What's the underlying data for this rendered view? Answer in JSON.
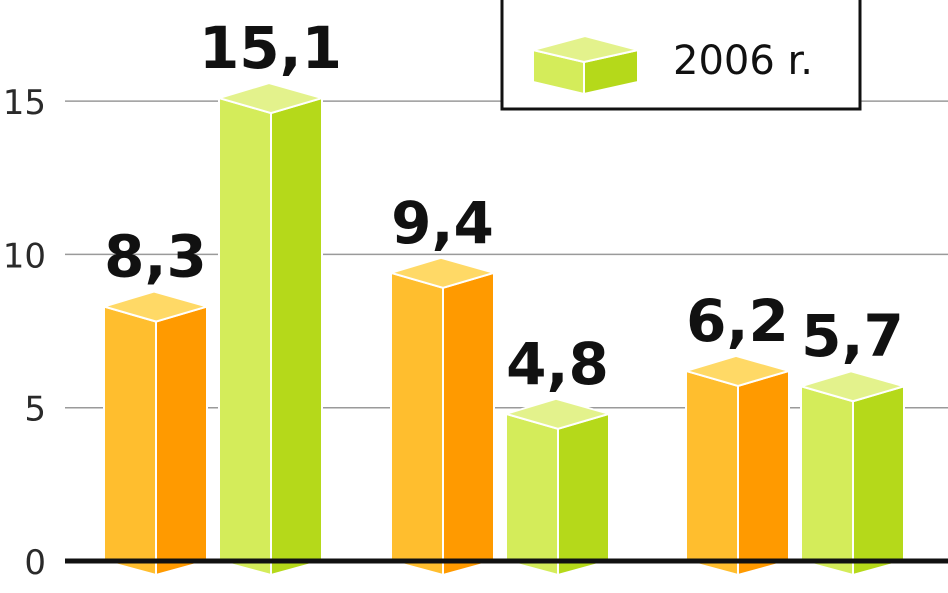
{
  "chart_data": {
    "type": "bar",
    "categories": [
      "",
      "",
      ""
    ],
    "series": [
      {
        "color_front": "#FFBE2E",
        "color_side": "#FF9A00",
        "color_top": "#FFD966",
        "values": [
          8.3,
          9.4,
          6.2
        ]
      },
      {
        "name": "2006 r.",
        "color_front": "#D4EC5A",
        "color_side": "#B5D91A",
        "color_top": "#E3F28C",
        "values": [
          15.1,
          4.8,
          5.7
        ]
      }
    ],
    "value_labels": [
      [
        "8,3",
        "9,4",
        "6,2"
      ],
      [
        "15,1",
        "4,8",
        "5,7"
      ]
    ],
    "yticks": [
      0,
      5,
      10,
      15
    ],
    "ytick_labels": [
      "0",
      "5",
      "10",
      "15"
    ],
    "ylim": [
      0,
      18.3
    ],
    "grid": true,
    "legend": {
      "position": "top-right",
      "entries": [
        "2006 r."
      ]
    }
  }
}
